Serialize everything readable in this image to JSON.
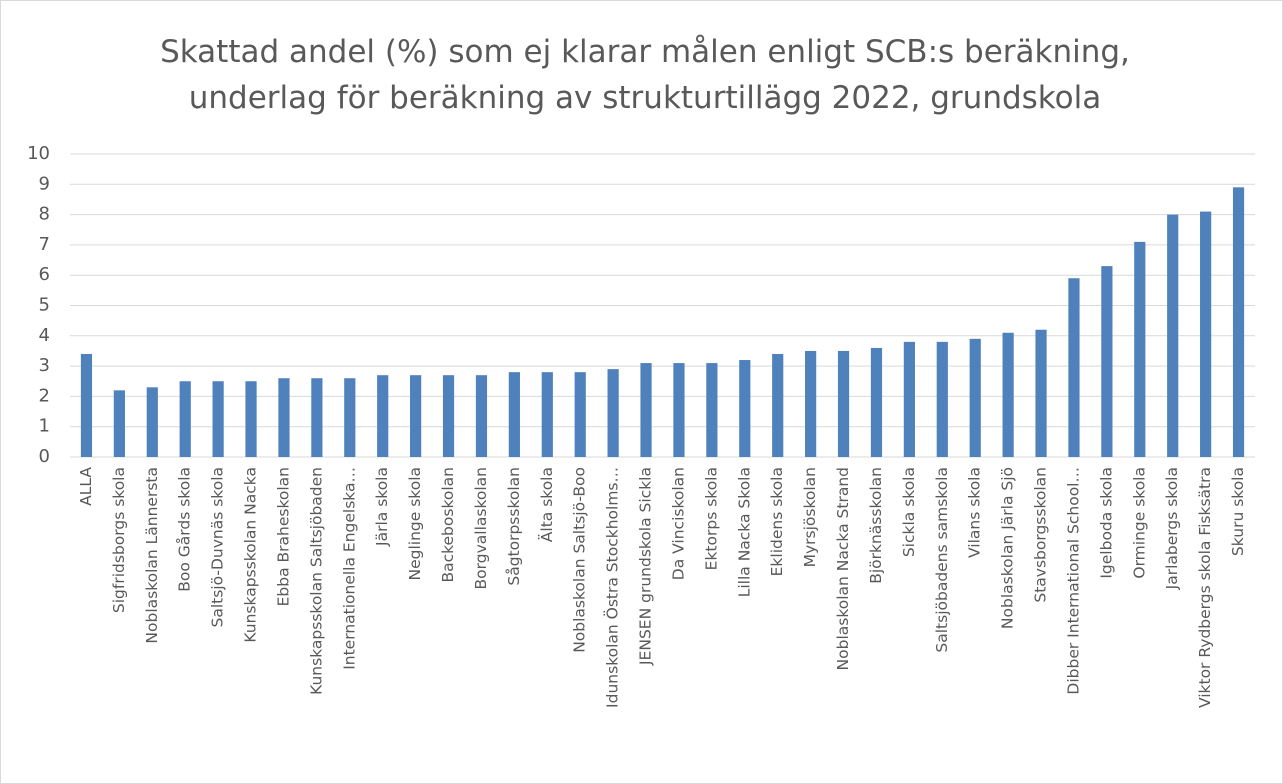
{
  "chart_data": {
    "type": "bar",
    "title": [
      "Skattad andel (%) som ej klarar målen enligt SCB:s beräkning,",
      "underlag för beräkning av strukturtillägg 2022, grundskola"
    ],
    "categories": [
      "ALLA",
      "Sigfridsborgs skola",
      "Noblaskolan Lännersta",
      "Boo Gårds skola",
      "Saltsjö-Duvnäs skola",
      "Kunskapsskolan Nacka",
      "Ebba Braheskolan",
      "Kunskapsskolan Saltsjöbaden",
      "Internationella Engelska…",
      "Järla skola",
      "Neglinge skola",
      "Backeboskolan",
      "Borgvallaskolan",
      "Sågtorpsskolan",
      "Älta skola",
      "Noblaskolan Saltsjö-Boo",
      "Idunskolan Östra Stockholms…",
      "JENSEN grundskola Sickla",
      "Da Vinciskolan",
      "Ektorps skola",
      "Lilla Nacka Skola",
      "Eklidens skola",
      "Myrsjöskolan",
      "Noblaskolan Nacka Strand",
      "Björknässkolan",
      "Sickla skola",
      "Saltsjöbadens samskola",
      "Vilans skola",
      "Noblaskolan Järla Sjö",
      "Stavsborgsskolan",
      "Dibber International School…",
      "Igelboda skola",
      "Orminge skola",
      "Jarlabergs skola",
      "Viktor Rydbergs skola Fisksätra",
      "Skuru skola"
    ],
    "values": [
      3.4,
      2.2,
      2.3,
      2.5,
      2.5,
      2.5,
      2.6,
      2.6,
      2.6,
      2.7,
      2.7,
      2.7,
      2.7,
      2.8,
      2.8,
      2.8,
      2.9,
      3.1,
      3.1,
      3.1,
      3.2,
      3.4,
      3.5,
      3.5,
      3.6,
      3.8,
      3.8,
      3.9,
      4.1,
      4.2,
      5.9,
      6.3,
      7.1,
      8.0,
      8.1,
      8.9
    ],
    "color": "#4f81bd",
    "ylim": [
      0,
      10
    ],
    "yticks": [
      0,
      1,
      2,
      3,
      4,
      5,
      6,
      7,
      8,
      9,
      10
    ],
    "grid": true
  }
}
